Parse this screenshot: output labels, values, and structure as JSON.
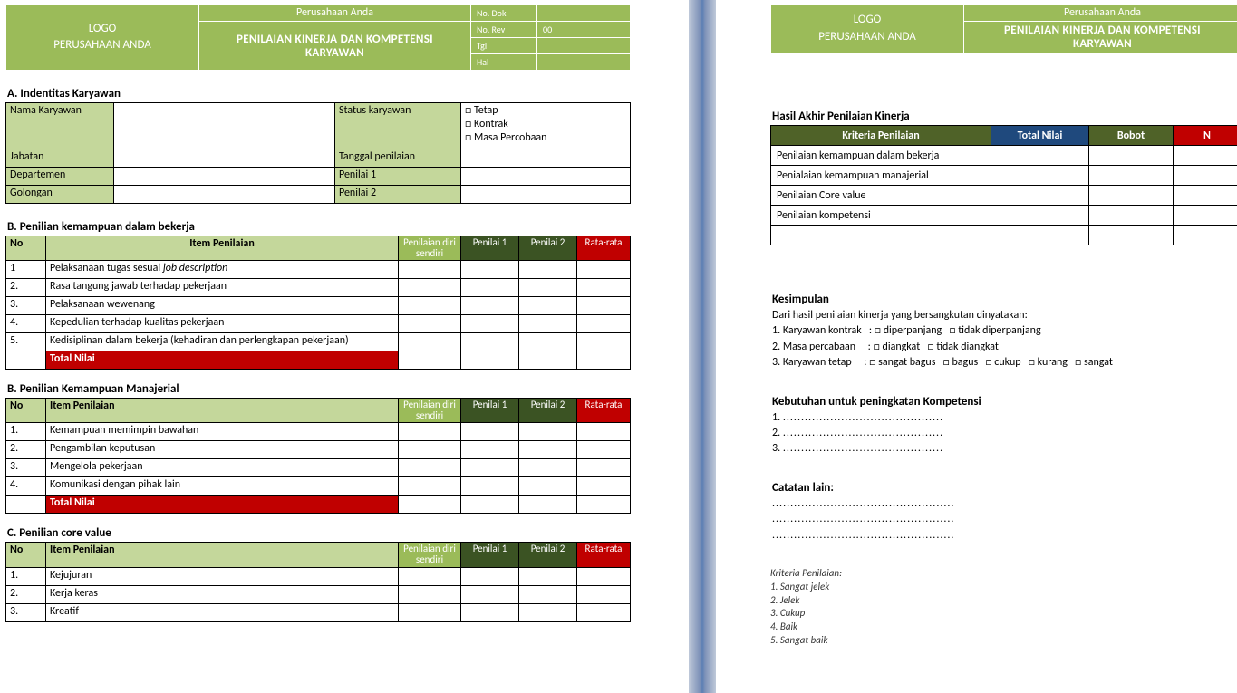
{
  "colors": {
    "green_light": "#c4d79b",
    "green_med": "#9bbb59",
    "green_dark": "#4f6228",
    "header_dark_green": "#3b5323",
    "red": "#c00000",
    "blue": "#1f497d",
    "border": "#000000",
    "page_bg": "#ffffff"
  },
  "letterhead": {
    "logo_line1": "LOGO",
    "logo_line2": "PERUSAHAAN ANDA",
    "company": "Perusahaan Anda",
    "doc_title_l1": "PENILAIAN KINERJA DAN KOMPETENSI",
    "doc_title_l2": "KARYAWAN",
    "meta": [
      {
        "k": "No. Dok",
        "v": ""
      },
      {
        "k": "No. Rev",
        "v": "00"
      },
      {
        "k": "Tgl",
        "v": ""
      },
      {
        "k": "Hal",
        "v": ""
      }
    ]
  },
  "sectA": {
    "heading": "A. Indentitas Karyawan",
    "rows_left": [
      {
        "k": "Nama Karyawan",
        "v": ""
      },
      {
        "k": "Jabatan",
        "v": ""
      },
      {
        "k": "Departemen",
        "v": ""
      },
      {
        "k": "Golongan",
        "v": ""
      }
    ],
    "rows_right": [
      {
        "k": "Status karyawan",
        "opts": [
          "Tetap",
          "Kontrak",
          "Masa Percobaan"
        ]
      },
      {
        "k": "Tanggal penilaian",
        "v": ""
      },
      {
        "k": "Penilai 1",
        "v": ""
      },
      {
        "k": "Penilai 2",
        "v": ""
      }
    ]
  },
  "assess_headers": {
    "no": "No",
    "item": "Item Penilaian",
    "self": "Penilaian diri sendiri",
    "p1": "Penilai 1",
    "p2": "Penilai 2",
    "avg": "Rata-rata",
    "total": "Total Nilai"
  },
  "sectB1": {
    "heading": "B. Penilian kemampuan dalam bekerja",
    "items": [
      "Pelaksanaan tugas sesuai job description",
      "Rasa tangung jawab terhadap pekerjaan",
      "Pelaksanaan wewenang",
      "Kepedulian terhadap kualitas pekerjaan",
      "Kedisiplinan dalam bekerja (kehadiran dan perlengkapan pekerjaan)"
    ],
    "italic_phrase": "job description"
  },
  "sectB2": {
    "heading": "B. Penilian Kemampuan Manajerial",
    "items": [
      "Kemampuan memimpin bawahan",
      "Pengambilan keputusan",
      "Mengelola pekerjaan",
      "Komunikasi dengan pihak lain"
    ]
  },
  "sectC": {
    "heading": "C. Penilian core value",
    "items": [
      "Kejujuran",
      "Kerja keras",
      "Kreatif"
    ]
  },
  "result": {
    "heading": "Hasil Akhir Penilaian Kinerja",
    "cols": [
      "Kriteria Penilaian",
      "Total Nilai",
      "Bobot",
      "N"
    ],
    "rows": [
      "Penilaian kemampuan dalam bekerja",
      "Penialaian kemampuan manajerial",
      "Penilaian Core value",
      "Penilaian kompetensi"
    ]
  },
  "kesimpulan": {
    "heading": "Kesimpulan",
    "intro": "Dari hasil penilaian kinerja yang bersangkutan dinyatakan:",
    "lines": [
      {
        "label": "1. Karyawan kontrak",
        "opts": [
          "diperpanjang",
          "tidak diperpanjang"
        ]
      },
      {
        "label": "2. Masa percabaan",
        "opts": [
          "diangkat",
          "tidak diangkat"
        ]
      },
      {
        "label": "3. Karyawan tetap",
        "opts": [
          "sangat bagus",
          "bagus",
          "cukup",
          "kurang",
          "sangat"
        ]
      }
    ]
  },
  "kebutuhan": {
    "heading": "Kebutuhan untuk peningkatan Kompetensi",
    "lines": [
      "1.",
      "2.",
      "3."
    ]
  },
  "catatan": {
    "heading": "Catatan lain:"
  },
  "kriteria_legend": {
    "heading": "Kriteria Penilaian:",
    "items": [
      "1. Sangat jelek",
      "2. Jelek",
      "3. Cukup",
      "4. Baik",
      "5. Sangat baik"
    ]
  }
}
